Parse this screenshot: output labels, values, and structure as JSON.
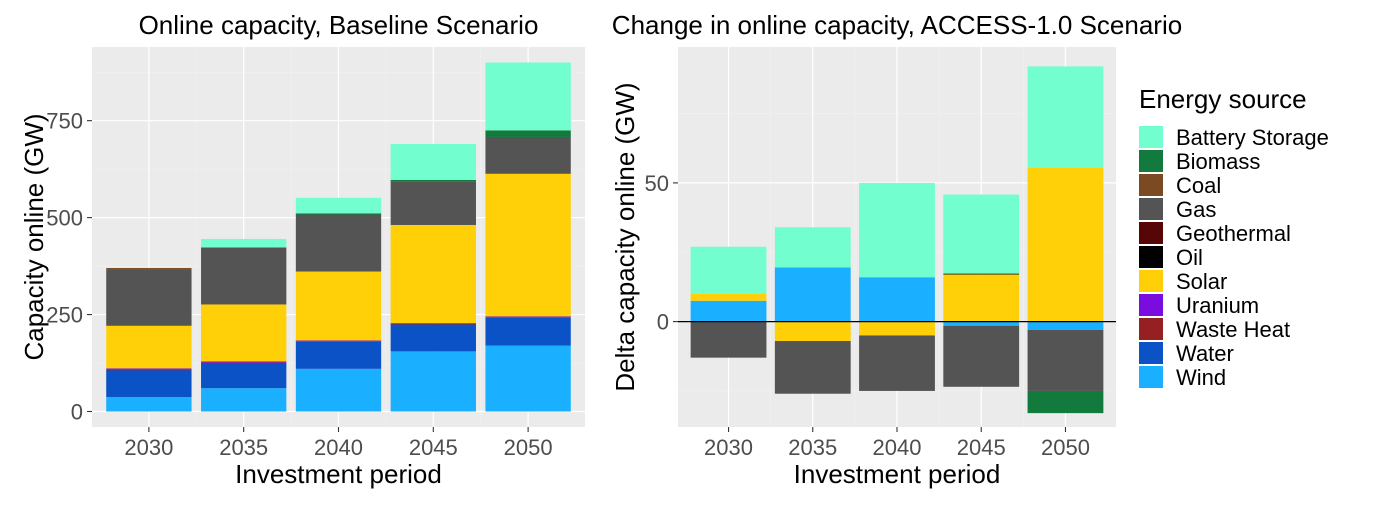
{
  "legend": {
    "title": "Energy source",
    "items": [
      {
        "name": "Battery Storage",
        "color": "#72FECF"
      },
      {
        "name": "Biomass",
        "color": "#117A3C"
      },
      {
        "name": "Coal",
        "color": "#7B4A22"
      },
      {
        "name": "Gas",
        "color": "#545454"
      },
      {
        "name": "Geothermal",
        "color": "#560606"
      },
      {
        "name": "Oil",
        "color": "#000000"
      },
      {
        "name": "Solar",
        "color": "#FFD008"
      },
      {
        "name": "Uranium",
        "color": "#7B0CDF"
      },
      {
        "name": "Waste Heat",
        "color": "#952022"
      },
      {
        "name": "Water",
        "color": "#0C52C7"
      },
      {
        "name": "Wind",
        "color": "#1AB0FF"
      }
    ]
  },
  "chart_data": [
    {
      "type": "bar",
      "stacked": true,
      "title": "Online capacity, Baseline Scenario",
      "xlabel": "Investment period",
      "ylabel": "Capacity online (GW)",
      "categories": [
        "2030",
        "2035",
        "2040",
        "2045",
        "2050"
      ],
      "yticks": [
        0,
        250,
        500,
        750
      ],
      "ylim": [
        -40,
        940
      ],
      "grid": true,
      "series": [
        {
          "name": "Wind",
          "values": [
            37,
            60,
            110,
            155,
            170
          ]
        },
        {
          "name": "Water",
          "values": [
            70,
            65,
            70,
            70,
            72
          ]
        },
        {
          "name": "Waste Heat",
          "values": [
            1,
            1,
            1,
            1,
            1
          ]
        },
        {
          "name": "Uranium",
          "values": [
            3,
            3,
            2,
            2,
            2
          ]
        },
        {
          "name": "Solar",
          "values": [
            110,
            147,
            178,
            253,
            368
          ]
        },
        {
          "name": "Oil",
          "values": [
            0,
            0,
            0,
            0,
            0
          ]
        },
        {
          "name": "Geothermal",
          "values": [
            0,
            0,
            0,
            0,
            0
          ]
        },
        {
          "name": "Gas",
          "values": [
            145,
            147,
            147,
            113,
            95
          ]
        },
        {
          "name": "Coal",
          "values": [
            4,
            0,
            0,
            0,
            0
          ]
        },
        {
          "name": "Biomass",
          "values": [
            0,
            0,
            3,
            3,
            17
          ]
        },
        {
          "name": "Battery Storage",
          "values": [
            0,
            22,
            40,
            93,
            175
          ]
        }
      ]
    },
    {
      "type": "bar",
      "stacked": true,
      "title": "Change in online capacity, ACCESS-1.0 Scenario",
      "xlabel": "Investment period",
      "ylabel": "Delta capacity online (GW)",
      "categories": [
        "2030",
        "2035",
        "2040",
        "2045",
        "2050"
      ],
      "yticks": [
        0,
        50
      ],
      "ylim": [
        -38,
        99
      ],
      "grid": true,
      "zero_line": true,
      "series": [
        {
          "name": "Wind",
          "values": [
            7.5,
            19.5,
            16,
            -1.5,
            -3
          ]
        },
        {
          "name": "Water",
          "values": [
            0,
            0,
            0,
            0,
            0
          ]
        },
        {
          "name": "Solar",
          "values": [
            2.5,
            -7,
            -5,
            17,
            55.5
          ]
        },
        {
          "name": "Gas",
          "values": [
            -13,
            -19,
            -20,
            -22,
            -22
          ]
        },
        {
          "name": "Oil",
          "values": [
            0,
            0,
            0,
            0.3,
            0
          ]
        },
        {
          "name": "Biomass",
          "values": [
            0,
            0,
            0,
            0,
            -8
          ]
        },
        {
          "name": "Battery Storage",
          "values": [
            17,
            14.5,
            34,
            28.5,
            36.5
          ]
        }
      ]
    }
  ]
}
